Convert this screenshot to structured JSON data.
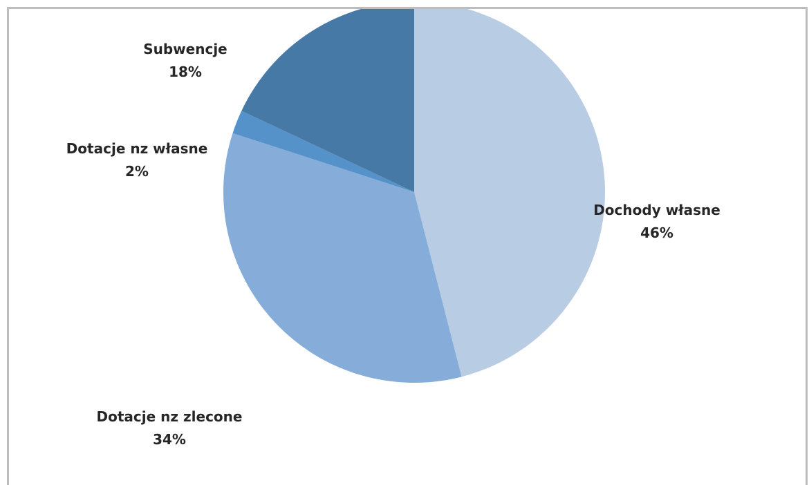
{
  "chart_data": {
    "type": "pie",
    "title": "",
    "start_angle_deg": 0,
    "direction": "clockwise",
    "legend": "none",
    "slices": [
      {
        "name": "Dochody własne",
        "value": 46,
        "label": "46%",
        "color": "#b8cce4"
      },
      {
        "name": "Dotacje nz zlecone",
        "value": 34,
        "label": "34%",
        "color": "#86acda"
      },
      {
        "name": "Dotacje nz własne",
        "value": 2,
        "label": "2%",
        "color": "#5592c9"
      },
      {
        "name": "Subwencje",
        "value": 18,
        "label": "18%",
        "color": "#4779a6"
      }
    ]
  }
}
